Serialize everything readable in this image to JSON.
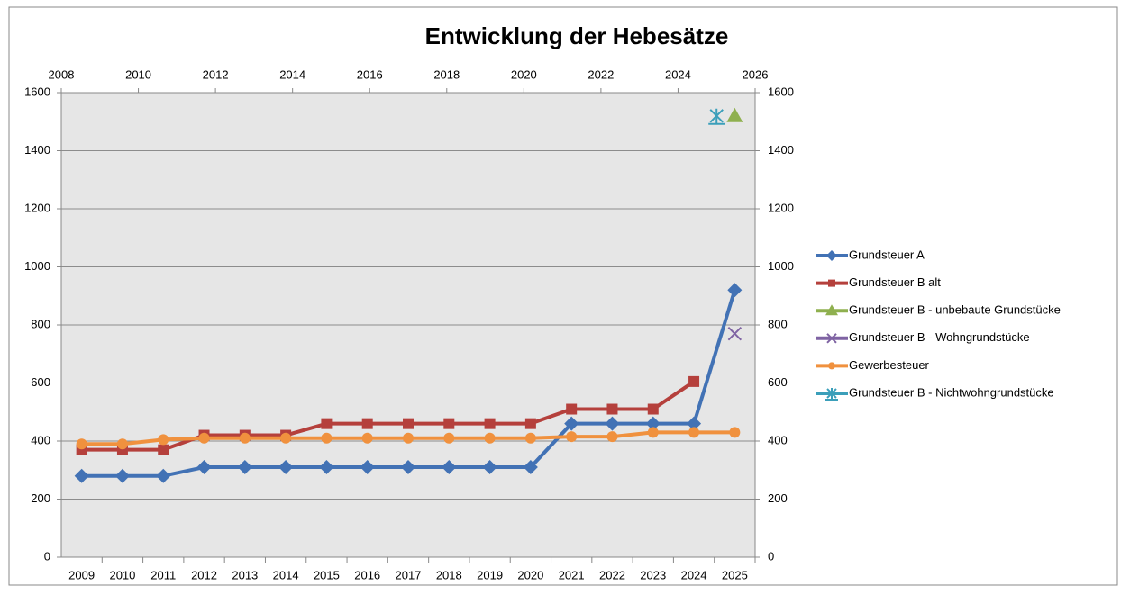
{
  "chart_data": {
    "type": "line",
    "title": "Entwicklung der Hebesätze",
    "categories": [
      "2009",
      "2010",
      "2011",
      "2012",
      "2013",
      "2014",
      "2015",
      "2016",
      "2017",
      "2018",
      "2019",
      "2020",
      "2021",
      "2022",
      "2023",
      "2024",
      "2025"
    ],
    "series": [
      {
        "name": "Grundsteuer A",
        "color": "#4272b5",
        "marker": "diamond",
        "values": [
          280,
          280,
          280,
          310,
          310,
          310,
          310,
          310,
          310,
          310,
          310,
          310,
          460,
          460,
          460,
          460,
          920
        ]
      },
      {
        "name": "Grundsteuer B alt",
        "color": "#b5403c",
        "marker": "square",
        "values": [
          370,
          370,
          370,
          420,
          420,
          420,
          460,
          460,
          460,
          460,
          460,
          460,
          510,
          510,
          510,
          605,
          null
        ]
      },
      {
        "name": "Grundsteuer B  - unbebaute Grundstücke",
        "color": "#8fb04f",
        "marker": "triangle",
        "values": [
          null,
          null,
          null,
          null,
          null,
          null,
          null,
          null,
          null,
          null,
          null,
          null,
          null,
          null,
          null,
          null,
          1520
        ]
      },
      {
        "name": "Grundsteuer B - Wohngrundstücke",
        "color": "#7f63a3",
        "marker": "x",
        "values": [
          null,
          null,
          null,
          null,
          null,
          null,
          null,
          null,
          null,
          null,
          null,
          null,
          null,
          null,
          null,
          null,
          770
        ]
      },
      {
        "name": "Gewerbesteuer",
        "color": "#f0913e",
        "marker": "circle",
        "values": [
          390,
          390,
          405,
          410,
          410,
          410,
          410,
          410,
          410,
          410,
          410,
          410,
          415,
          415,
          430,
          430,
          430
        ]
      },
      {
        "name": "Grundsteuer B - Nichtwohngrundstücke",
        "color": "#3b9fba",
        "marker": "asterisk",
        "axis": "x2",
        "x": [
          2025
        ],
        "values": [
          1520
        ]
      }
    ],
    "ylim": [
      0,
      1600
    ],
    "yticks": [
      0,
      200,
      400,
      600,
      800,
      1000,
      1200,
      1400,
      1600
    ],
    "y2lim": [
      0,
      1600
    ],
    "y2ticks": [
      0,
      200,
      400,
      600,
      800,
      1000,
      1200,
      1400,
      1600
    ],
    "x2lim": [
      2008,
      2026
    ],
    "x2ticks": [
      2008,
      2010,
      2012,
      2014,
      2016,
      2018,
      2020,
      2022,
      2024,
      2026
    ],
    "grid": true,
    "legend": "right"
  }
}
